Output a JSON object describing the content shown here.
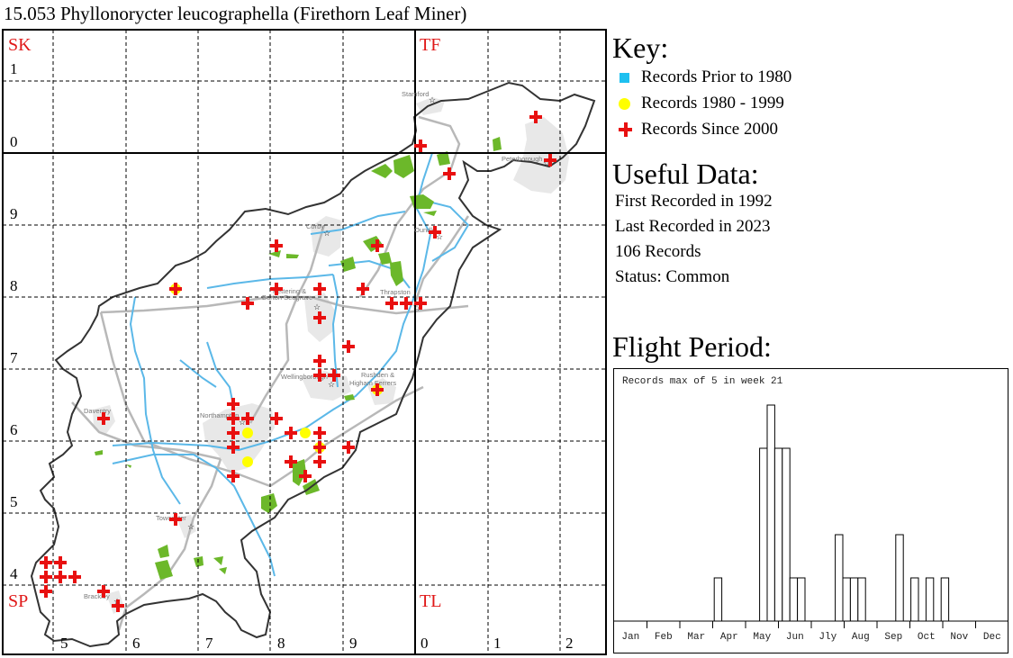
{
  "title": "15.053 Phyllonorycter leucographella (Firethorn Leaf Miner)",
  "map": {
    "square_labels": [
      "SK",
      "TF",
      "SP",
      "TL"
    ],
    "easting_labels": [
      "5",
      "6",
      "7",
      "8",
      "9",
      "0",
      "1",
      "2"
    ],
    "northing_labels": [
      "1",
      "0",
      "9",
      "8",
      "7",
      "6",
      "5",
      "4"
    ],
    "place_labels": [
      "Stamford",
      "Peterborough",
      "Corby",
      "Oundle",
      "Kettering &",
      "Burton Seagrave",
      "Thrapston",
      "Wellingborough",
      "Rushden &",
      "Higham Ferrers",
      "Daventry",
      "Northampton",
      "Towcester",
      "Brackley"
    ],
    "colors": {
      "square_label": "#e01818",
      "record_since_2000": "#e81010",
      "record_1980_1999": "#ffff00",
      "record_prior_1980": "#1ec0f0",
      "river": "#5bb8e8",
      "road": "#b4b4b4",
      "woodland": "#6cb82a",
      "urban": "#e6e6e6",
      "boundary": "#333333"
    }
  },
  "key": {
    "heading": "Key:",
    "items": [
      {
        "label": "Records Prior to 1980",
        "symbol": "cyan-square-icon"
      },
      {
        "label": "Records 1980 - 1999",
        "symbol": "yellow-dot-icon"
      },
      {
        "label": "Records Since 2000",
        "symbol": "red-cross-icon"
      }
    ]
  },
  "useful_data": {
    "heading": "Useful Data:",
    "first_recorded": "First Recorded in 1992",
    "last_recorded": "Last Recorded in 2023",
    "records": "106 Records",
    "status": "Status: Common"
  },
  "flight_period": {
    "heading": "Flight Period:"
  },
  "chart_data": {
    "type": "bar",
    "title": "Records max of 5 in week 21",
    "xlabel": "",
    "ylabel": "",
    "months": [
      "Jan",
      "Feb",
      "Mar",
      "Apr",
      "May",
      "Jun",
      "Jly",
      "Aug",
      "Sep",
      "Oct",
      "Nov",
      "Dec"
    ],
    "weeks_in_year": 52,
    "ylim": [
      0,
      5
    ],
    "grid": false,
    "bars": [
      {
        "week": 14,
        "value": 1
      },
      {
        "week": 20,
        "value": 4
      },
      {
        "week": 21,
        "value": 5
      },
      {
        "week": 22,
        "value": 4
      },
      {
        "week": 23,
        "value": 4
      },
      {
        "week": 24,
        "value": 1
      },
      {
        "week": 25,
        "value": 1
      },
      {
        "week": 30,
        "value": 2
      },
      {
        "week": 31,
        "value": 1
      },
      {
        "week": 32,
        "value": 1
      },
      {
        "week": 33,
        "value": 1
      },
      {
        "week": 38,
        "value": 2
      },
      {
        "week": 40,
        "value": 1
      },
      {
        "week": 42,
        "value": 1
      },
      {
        "week": 44,
        "value": 1
      }
    ]
  }
}
